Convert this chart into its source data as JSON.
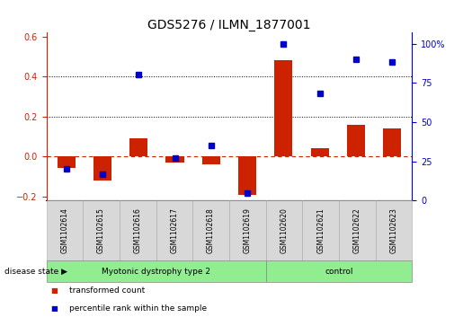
{
  "title": "GDS5276 / ILMN_1877001",
  "samples": [
    "GSM1102614",
    "GSM1102615",
    "GSM1102616",
    "GSM1102617",
    "GSM1102618",
    "GSM1102619",
    "GSM1102620",
    "GSM1102621",
    "GSM1102622",
    "GSM1102623"
  ],
  "red_values": [
    -0.055,
    -0.12,
    0.09,
    -0.03,
    -0.04,
    -0.19,
    0.48,
    0.04,
    0.16,
    0.14
  ],
  "blue_values": [
    20,
    17,
    80,
    27,
    35,
    5,
    100,
    68,
    90,
    88
  ],
  "ylim_left": [
    -0.22,
    0.62
  ],
  "ylim_right": [
    0,
    107
  ],
  "yticks_left": [
    -0.2,
    0.0,
    0.2,
    0.4,
    0.6
  ],
  "yticks_right": [
    0,
    25,
    50,
    75,
    100
  ],
  "ytick_labels_right": [
    "0",
    "25",
    "50",
    "75",
    "100%"
  ],
  "dotted_lines": [
    0.2,
    0.4
  ],
  "group1_label": "Myotonic dystrophy type 2",
  "group1_count": 6,
  "group2_label": "control",
  "group2_count": 4,
  "disease_state_label": "disease state",
  "legend_red": "transformed count",
  "legend_blue": "percentile rank within the sample",
  "red_color": "#CC2200",
  "blue_color": "#0000CC",
  "bg_color": "#ffffff",
  "label_box_color": "#d8d8d8",
  "label_box_edge": "#aaaaaa",
  "group_bar_color": "#90EE90",
  "group_bar_edge": "#888888",
  "zero_line_color": "#CC2200",
  "title_fontsize": 10,
  "tick_fontsize": 7,
  "label_fontsize": 5.5,
  "group_fontsize": 6.5,
  "legend_fontsize": 6.5
}
